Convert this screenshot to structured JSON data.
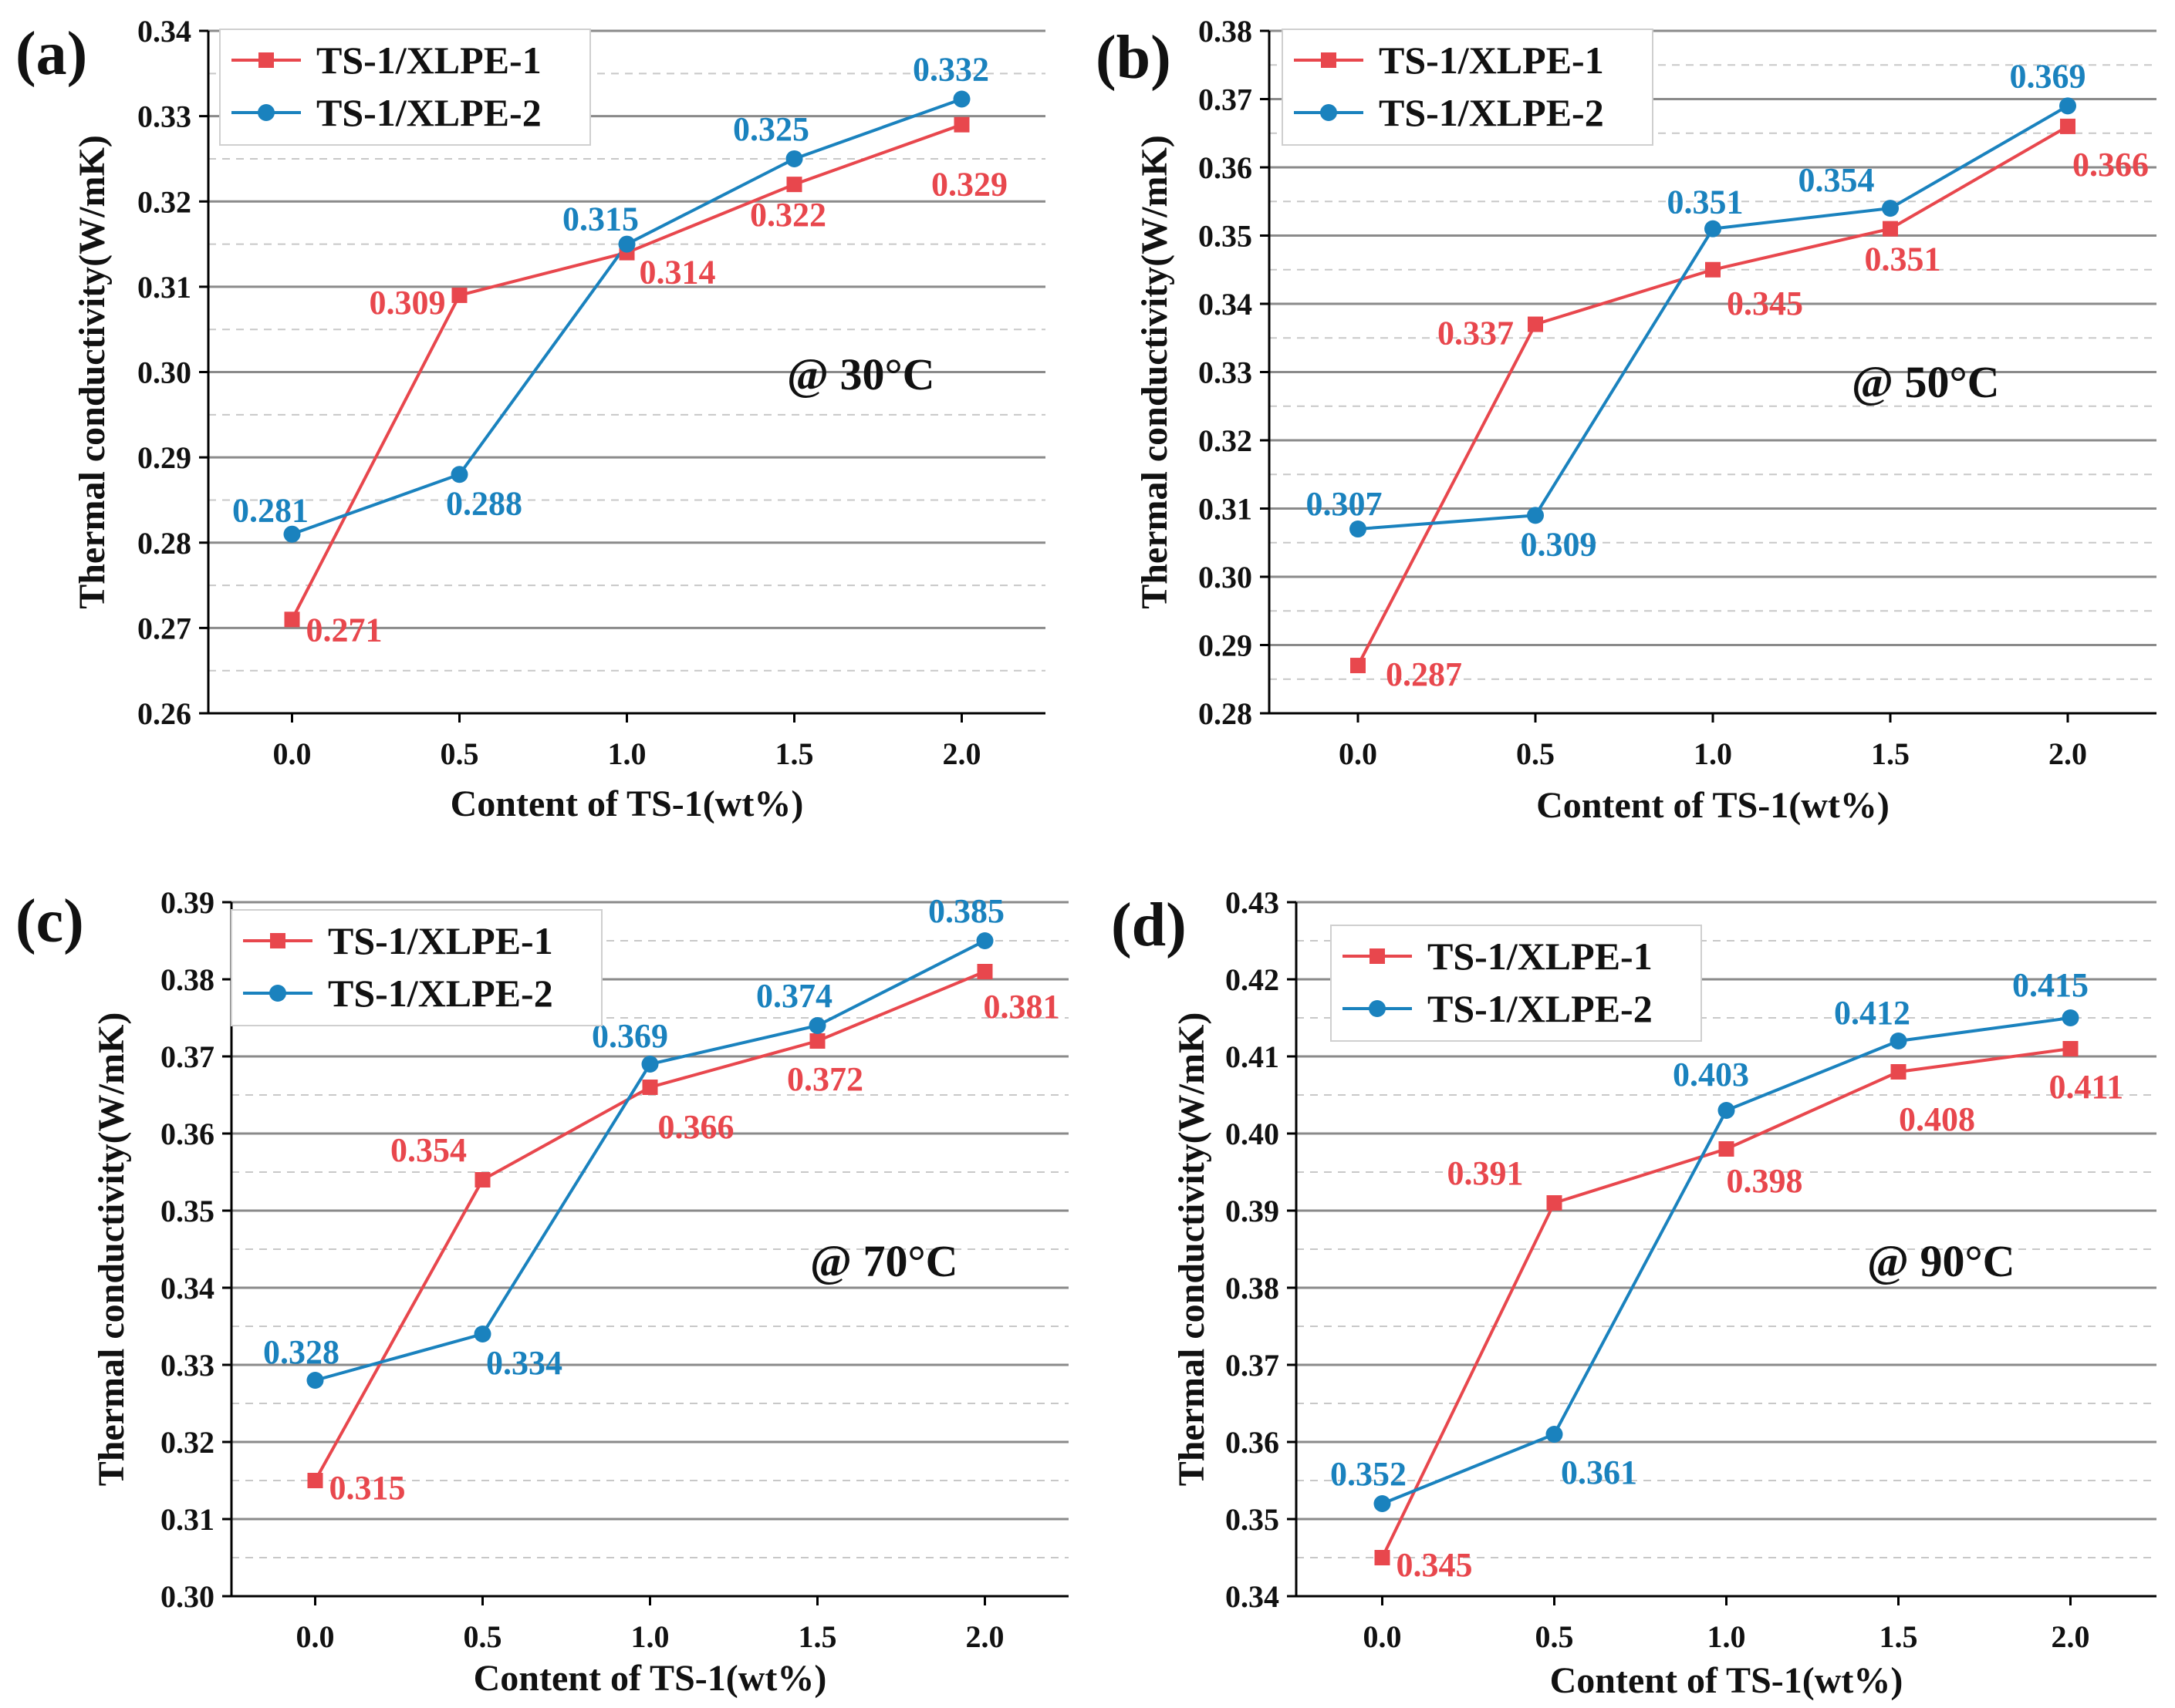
{
  "colors": {
    "series1": "#e8474d",
    "series2": "#1a82be",
    "grid_major": "#8a8a8a",
    "grid_minor": "#c8c8c8",
    "axis": "#000000",
    "text": "#111111"
  },
  "chart_data": [
    {
      "panel_label": "(a)",
      "type": "line",
      "annotation": "@ 30°C",
      "xlabel": "Content of TS-1(wt%)",
      "ylabel": "Thermal conductivity(W/mK)",
      "x": [
        0.0,
        0.5,
        1.0,
        1.5,
        2.0
      ],
      "x_tick_labels": [
        "0.0",
        "0.5",
        "1.0",
        "1.5",
        "2.0"
      ],
      "xlim": [
        -0.25,
        2.25
      ],
      "ylim": [
        0.26,
        0.34
      ],
      "y_tick_labels": [
        "0.26",
        "0.27",
        "0.28",
        "0.29",
        "0.30",
        "0.31",
        "0.32",
        "0.33",
        "0.34"
      ],
      "legend_position": "top-left",
      "series": [
        {
          "name": "TS-1/XLPE-1",
          "marker": "square",
          "color": "#e8474d",
          "values": [
            0.271,
            0.309,
            0.314,
            0.322,
            0.329
          ],
          "labels": [
            "0.271",
            "0.309",
            "0.314",
            "0.322",
            "0.329"
          ]
        },
        {
          "name": "TS-1/XLPE-2",
          "marker": "circle",
          "color": "#1a82be",
          "values": [
            0.281,
            0.288,
            0.315,
            0.325,
            0.332
          ],
          "labels": [
            "0.281",
            "0.288",
            "0.315",
            "0.325",
            "0.332"
          ]
        }
      ]
    },
    {
      "panel_label": "(b)",
      "type": "line",
      "annotation": "@ 50°C",
      "xlabel": "Content of TS-1(wt%)",
      "ylabel": "Thermal conductivity(W/mK)",
      "x": [
        0.0,
        0.5,
        1.0,
        1.5,
        2.0
      ],
      "x_tick_labels": [
        "0.0",
        "0.5",
        "1.0",
        "1.5",
        "2.0"
      ],
      "xlim": [
        -0.25,
        2.25
      ],
      "ylim": [
        0.28,
        0.38
      ],
      "y_tick_labels": [
        "0.28",
        "0.29",
        "0.30",
        "0.31",
        "0.32",
        "0.33",
        "0.34",
        "0.35",
        "0.36",
        "0.37",
        "0.38"
      ],
      "legend_position": "top-left",
      "series": [
        {
          "name": "TS-1/XLPE-1",
          "marker": "square",
          "color": "#e8474d",
          "values": [
            0.287,
            0.337,
            0.345,
            0.351,
            0.366
          ],
          "labels": [
            "0.287",
            "0.337",
            "0.345",
            "0.351",
            "0.366"
          ]
        },
        {
          "name": "TS-1/XLPE-2",
          "marker": "circle",
          "color": "#1a82be",
          "values": [
            0.307,
            0.309,
            0.351,
            0.354,
            0.369
          ],
          "labels": [
            "0.307",
            "0.309",
            "0.351",
            "0.354",
            "0.369"
          ]
        }
      ]
    },
    {
      "panel_label": "(c)",
      "type": "line",
      "annotation": "@ 70°C",
      "xlabel": "Content of TS-1(wt%)",
      "ylabel": "Thermal conductivity(W/mK)",
      "x": [
        0.0,
        0.5,
        1.0,
        1.5,
        2.0
      ],
      "x_tick_labels": [
        "0.0",
        "0.5",
        "1.0",
        "1.5",
        "2.0"
      ],
      "xlim": [
        -0.25,
        2.25
      ],
      "ylim": [
        0.3,
        0.39
      ],
      "y_tick_labels": [
        "0.30",
        "0.31",
        "0.32",
        "0.33",
        "0.34",
        "0.35",
        "0.36",
        "0.37",
        "0.38",
        "0.39"
      ],
      "legend_position": "top-left",
      "series": [
        {
          "name": "TS-1/XLPE-1",
          "marker": "square",
          "color": "#e8474d",
          "values": [
            0.315,
            0.354,
            0.366,
            0.372,
            0.381
          ],
          "labels": [
            "0.315",
            "0.354",
            "0.366",
            "0.372",
            "0.381"
          ]
        },
        {
          "name": "TS-1/XLPE-2",
          "marker": "circle",
          "color": "#1a82be",
          "values": [
            0.328,
            0.334,
            0.369,
            0.374,
            0.385
          ],
          "labels": [
            "0.328",
            "0.334",
            "0.369",
            "0.374",
            "0.385"
          ]
        }
      ]
    },
    {
      "panel_label": "(d)",
      "type": "line",
      "annotation": "@ 90°C",
      "xlabel": "Content of TS-1(wt%)",
      "ylabel": "Thermal conductivity(W/mK)",
      "x": [
        0.0,
        0.5,
        1.0,
        1.5,
        2.0
      ],
      "x_tick_labels": [
        "0.0",
        "0.5",
        "1.0",
        "1.5",
        "2.0"
      ],
      "xlim": [
        -0.25,
        2.25
      ],
      "ylim": [
        0.34,
        0.43
      ],
      "y_tick_labels": [
        "0.34",
        "0.35",
        "0.36",
        "0.37",
        "0.38",
        "0.39",
        "0.40",
        "0.41",
        "0.42",
        "0.43"
      ],
      "legend_position": "top-left",
      "series": [
        {
          "name": "TS-1/XLPE-1",
          "marker": "square",
          "color": "#e8474d",
          "values": [
            0.345,
            0.391,
            0.398,
            0.408,
            0.411
          ],
          "labels": [
            "0.345",
            "0.391",
            "0.398",
            "0.408",
            "0.411"
          ]
        },
        {
          "name": "TS-1/XLPE-2",
          "marker": "circle",
          "color": "#1a82be",
          "values": [
            0.352,
            0.361,
            0.403,
            0.412,
            0.415
          ],
          "labels": [
            "0.352",
            "0.361",
            "0.403",
            "0.412",
            "0.415"
          ]
        }
      ]
    }
  ]
}
